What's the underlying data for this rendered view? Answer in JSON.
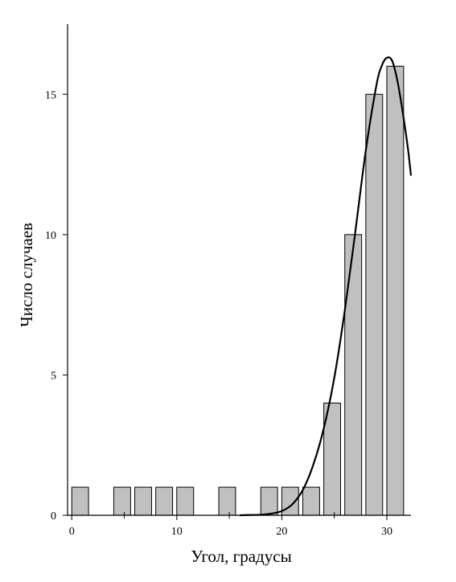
{
  "chart_data": {
    "type": "bar",
    "xlabel": "Угол, градусы",
    "ylabel": "Число случаев",
    "xlim": [
      -0.4,
      32.3
    ],
    "ylim": [
      0,
      17.5
    ],
    "x_ticks": [
      0,
      10,
      20,
      30
    ],
    "x_tick_labels": [
      "0",
      "10",
      "20",
      "30"
    ],
    "x_minor_ticks": [
      5,
      15,
      25
    ],
    "y_ticks": [
      0,
      5,
      10,
      15
    ],
    "y_tick_labels": [
      "0",
      "5",
      "10",
      "15"
    ],
    "bar_width": 1.6,
    "bars": [
      {
        "x": 0.8,
        "value": 1
      },
      {
        "x": 4.8,
        "value": 1
      },
      {
        "x": 6.8,
        "value": 1
      },
      {
        "x": 8.8,
        "value": 1
      },
      {
        "x": 10.8,
        "value": 1
      },
      {
        "x": 14.8,
        "value": 1
      },
      {
        "x": 18.8,
        "value": 1
      },
      {
        "x": 20.8,
        "value": 1
      },
      {
        "x": 22.8,
        "value": 1
      },
      {
        "x": 24.8,
        "value": 4
      },
      {
        "x": 26.8,
        "value": 10
      },
      {
        "x": 28.8,
        "value": 15
      },
      {
        "x": 30.8,
        "value": 16
      }
    ],
    "fit_curve": {
      "points": [
        [
          16.0,
          0.0
        ],
        [
          17.0,
          0.01
        ],
        [
          18.0,
          0.02
        ],
        [
          19.0,
          0.06
        ],
        [
          20.0,
          0.15
        ],
        [
          21.0,
          0.39
        ],
        [
          22.0,
          0.9
        ],
        [
          23.0,
          1.8
        ],
        [
          24.0,
          3.1
        ],
        [
          25.0,
          4.9
        ],
        [
          26.0,
          7.3
        ],
        [
          27.0,
          10.1
        ],
        [
          28.0,
          13.0
        ],
        [
          29.0,
          15.3
        ],
        [
          29.5,
          16.0
        ],
        [
          30.0,
          16.3
        ],
        [
          30.5,
          16.2
        ],
        [
          31.0,
          15.5
        ],
        [
          31.5,
          14.4
        ],
        [
          32.0,
          13.1
        ],
        [
          32.3,
          12.1
        ]
      ]
    },
    "colors": {
      "bar_fill": "#c0c0c0",
      "bar_stroke": "#000000",
      "curve": "#000000",
      "axis": "#000000"
    }
  }
}
